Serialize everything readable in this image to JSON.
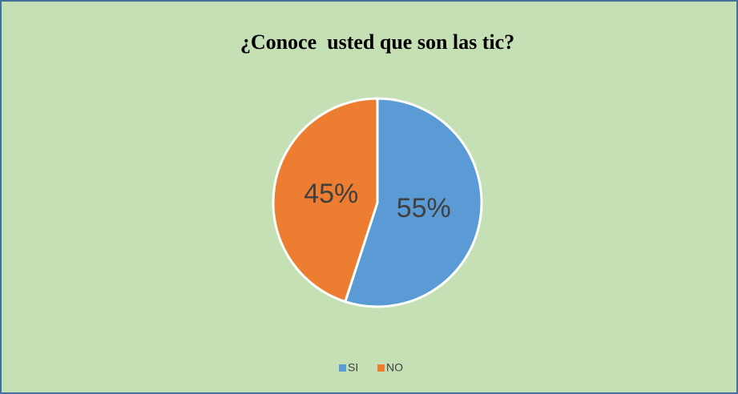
{
  "chart_data": {
    "type": "pie",
    "title": "¿Conoce  usted que son las tic?",
    "categories": [
      "SI",
      "NO"
    ],
    "values": [
      55,
      45
    ],
    "value_labels": [
      "55%",
      "45%"
    ],
    "colors": [
      "#5b9bd5",
      "#ed7d31"
    ],
    "legend": "bottom"
  }
}
